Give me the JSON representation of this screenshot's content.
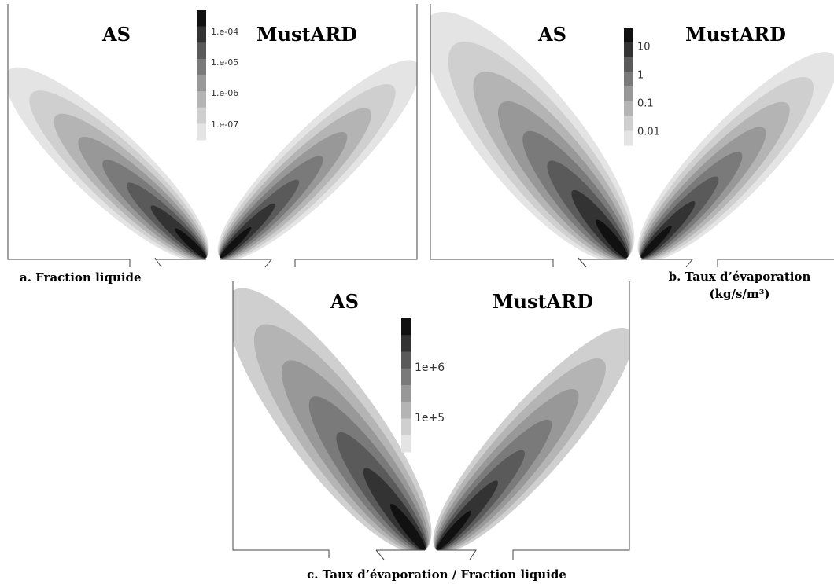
{
  "panels": [
    {
      "titles": [
        "AS",
        "MustARD"
      ],
      "colorbar": [
        "1.e-04",
        "1.e-05",
        "1.e-06",
        "1.e-07"
      ],
      "caption": [
        "a. Fraction liquide"
      ]
    },
    {
      "titles": [
        "AS",
        "MustARD"
      ],
      "colorbar": [
        "10",
        "1",
        "0.1",
        "0.01"
      ],
      "caption": [
        "b. Taux d’évaporation",
        "(kg/s/m³)"
      ]
    },
    {
      "titles": [
        "AS",
        "MustARD"
      ],
      "colorbar": [
        "1e+6",
        "1e+5"
      ],
      "caption": [
        "c. Taux d’évaporation / Fraction liquide"
      ]
    }
  ]
}
